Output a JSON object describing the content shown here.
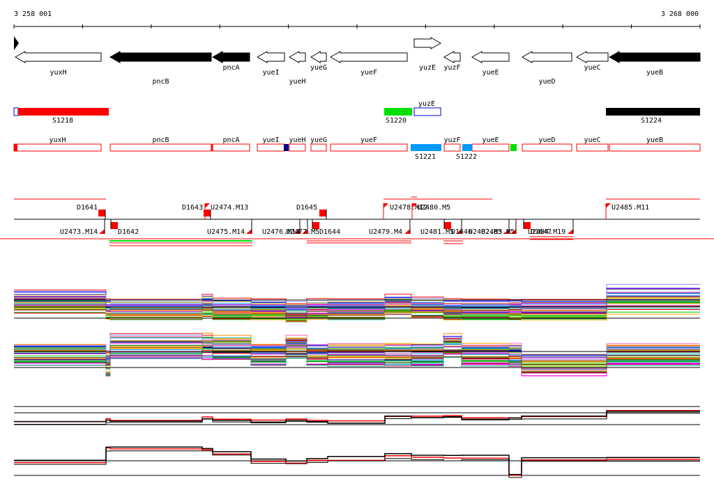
{
  "ruler": {
    "start_label": "3 258 001",
    "end_label": "3 268 000"
  },
  "genes": [
    {
      "name": "yuxH",
      "strand": "-",
      "fill": "white"
    },
    {
      "name": "pncB",
      "strand": "-",
      "fill": "black"
    },
    {
      "name": "pncA",
      "strand": "-",
      "fill": "black"
    },
    {
      "name": "yueI",
      "strand": "-",
      "fill": "white"
    },
    {
      "name": "yueH",
      "strand": "-",
      "fill": "white"
    },
    {
      "name": "yueG",
      "strand": "-",
      "fill": "white"
    },
    {
      "name": "yueF",
      "strand": "-",
      "fill": "white"
    },
    {
      "name": "yuzE",
      "strand": "+",
      "fill": "white"
    },
    {
      "name": "yuzF",
      "strand": "-",
      "fill": "white"
    },
    {
      "name": "yueE",
      "strand": "-",
      "fill": "white"
    },
    {
      "name": "yueD",
      "strand": "-",
      "fill": "white"
    },
    {
      "name": "yueC",
      "strand": "-",
      "fill": "white"
    },
    {
      "name": "yueB",
      "strand": "-",
      "fill": "black"
    }
  ],
  "segments": [
    {
      "name": "S1218",
      "color": "#ff0000"
    },
    {
      "name": "S1220",
      "color": "#00e000"
    },
    {
      "name": "yuzE",
      "color": "#ffffff"
    },
    {
      "name": "S1224",
      "color": "#000000"
    }
  ],
  "gene_boxes": [
    "yuxH",
    "pncB",
    "pncA",
    "yueI",
    "yueH",
    "yueG",
    "yueF",
    "yuzF",
    "yueE",
    "yueD",
    "yueC",
    "yueB"
  ],
  "blue_labels": [
    "S1221",
    "S1222"
  ],
  "markers_upper": [
    "D1641",
    "D1643",
    "U2474.M13",
    "D1645",
    "U2478.M12",
    "U2480.M5",
    "U2485.M11"
  ],
  "markers_lower": [
    "U2473.M14",
    "D1642",
    "U2475.M14",
    "U2476.M14",
    "U2477.M5",
    "D1644",
    "U2479.M4",
    "U2481.M5",
    "D1646",
    "U2482.M5",
    "U2483.M5",
    "D1647",
    "U2484.M19"
  ],
  "colors": {
    "red": "#ff0000",
    "green": "#00e000",
    "blue": "#0099ff",
    "navy": "#000080"
  }
}
